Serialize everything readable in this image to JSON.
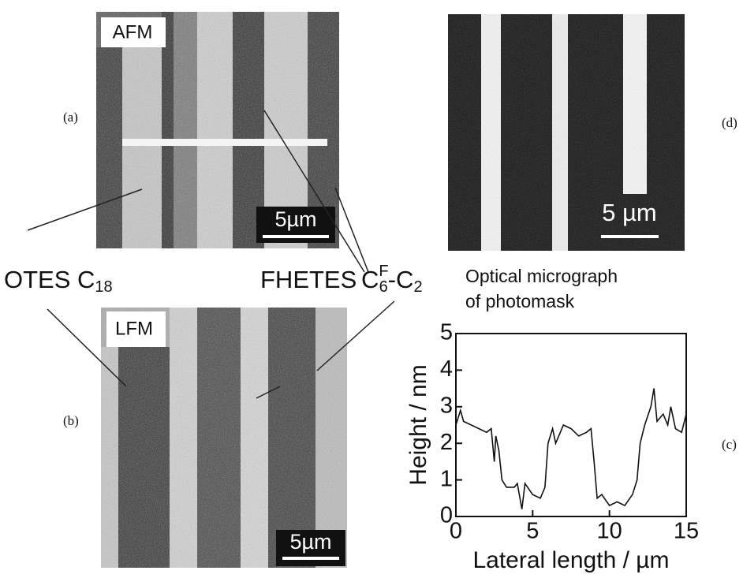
{
  "panels": {
    "a": {
      "tag": "(a)",
      "label": "AFM",
      "scale": "5µm"
    },
    "b": {
      "tag": "(b)",
      "label": "LFM",
      "scale": "5µm"
    },
    "c": {
      "tag": "(c)"
    },
    "d": {
      "tag": "(d)",
      "scale": "5 µm",
      "caption_1": "Optical micrograph",
      "caption_2": "of photomask"
    }
  },
  "labels": {
    "otes": {
      "text": "OTES C",
      "sub": "18"
    },
    "fhetes": "FHETES",
    "cf6": {
      "c1": "C",
      "sup": "F",
      "sub1": "6",
      "c2": "-C",
      "sub2": "2"
    }
  },
  "chart_data": {
    "type": "line",
    "xlabel": "Lateral length / µm",
    "ylabel": "Height / nm",
    "color": "#111111",
    "xlim": [
      0,
      15
    ],
    "ylim": [
      0,
      5
    ],
    "xticks": [
      0,
      5,
      10,
      15
    ],
    "yticks": [
      0,
      1,
      2,
      3,
      4,
      5
    ],
    "x": [
      0,
      0.3,
      0.5,
      1,
      1.5,
      2,
      2.3,
      2.5,
      2.6,
      2.8,
      3,
      3.3,
      3.8,
      4,
      4.3,
      4.5,
      5,
      5.5,
      5.8,
      6,
      6.3,
      6.5,
      7,
      7.5,
      8,
      8.5,
      8.8,
      9,
      9.2,
      9.5,
      10,
      10.5,
      11,
      11.5,
      11.8,
      12,
      12.3,
      12.7,
      12.9,
      13.1,
      13.5,
      13.8,
      14,
      14.3,
      14.7,
      15
    ],
    "values": [
      2.5,
      2.9,
      2.6,
      2.5,
      2.4,
      2.3,
      2.4,
      1.5,
      2.2,
      1.8,
      1.0,
      0.8,
      0.8,
      0.9,
      0.2,
      0.9,
      0.6,
      0.5,
      0.8,
      2.0,
      2.4,
      2.0,
      2.5,
      2.4,
      2.2,
      2.3,
      2.4,
      1.5,
      0.5,
      0.6,
      0.3,
      0.4,
      0.3,
      0.6,
      1.0,
      2.0,
      2.5,
      3.0,
      3.5,
      2.6,
      2.8,
      2.5,
      3.0,
      2.4,
      2.3,
      2.8
    ]
  }
}
